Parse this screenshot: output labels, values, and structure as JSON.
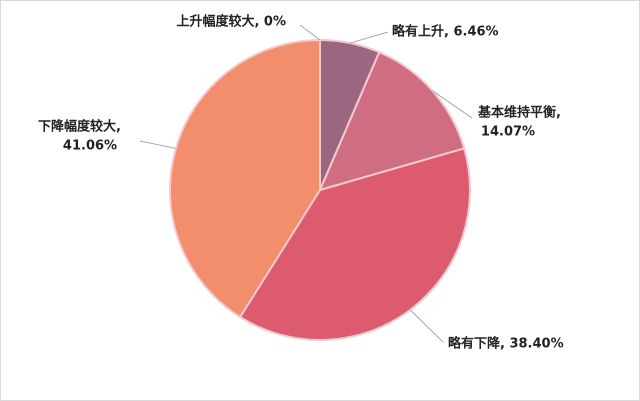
{
  "chart_data": {
    "type": "pie",
    "values": [
      0,
      6.46,
      14.07,
      38.4,
      41.06
    ],
    "labels": [
      [
        "上升幅度较大, 0%"
      ],
      [
        "略有上升, 6.46%"
      ],
      [
        "基本维持平衡,",
        "14.07%"
      ],
      [
        "略有下降, 38.40%"
      ],
      [
        "下降幅度较大,",
        "41.06%"
      ]
    ],
    "colors": [
      "#b85a73",
      "#9b6680",
      "#cf6e82",
      "#dc5b6f",
      "#f28e6b"
    ]
  }
}
